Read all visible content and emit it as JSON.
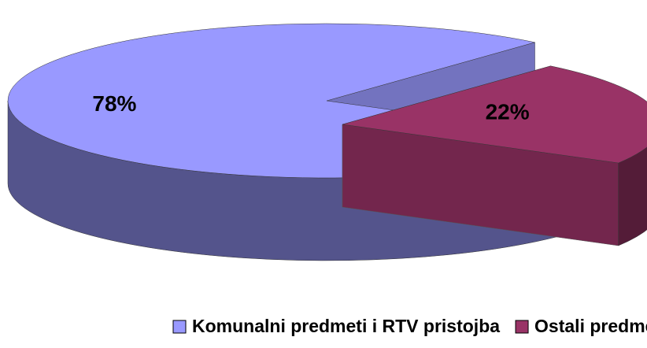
{
  "chart_data": {
    "type": "pie",
    "categories": [
      "Komunalni predmeti i RTV pristojba",
      "Ostali predmeti"
    ],
    "values": [
      78,
      22
    ],
    "value_labels": [
      "78%",
      "22%"
    ],
    "colors": [
      "#9999ff",
      "#993366"
    ],
    "legend": "bottom"
  }
}
